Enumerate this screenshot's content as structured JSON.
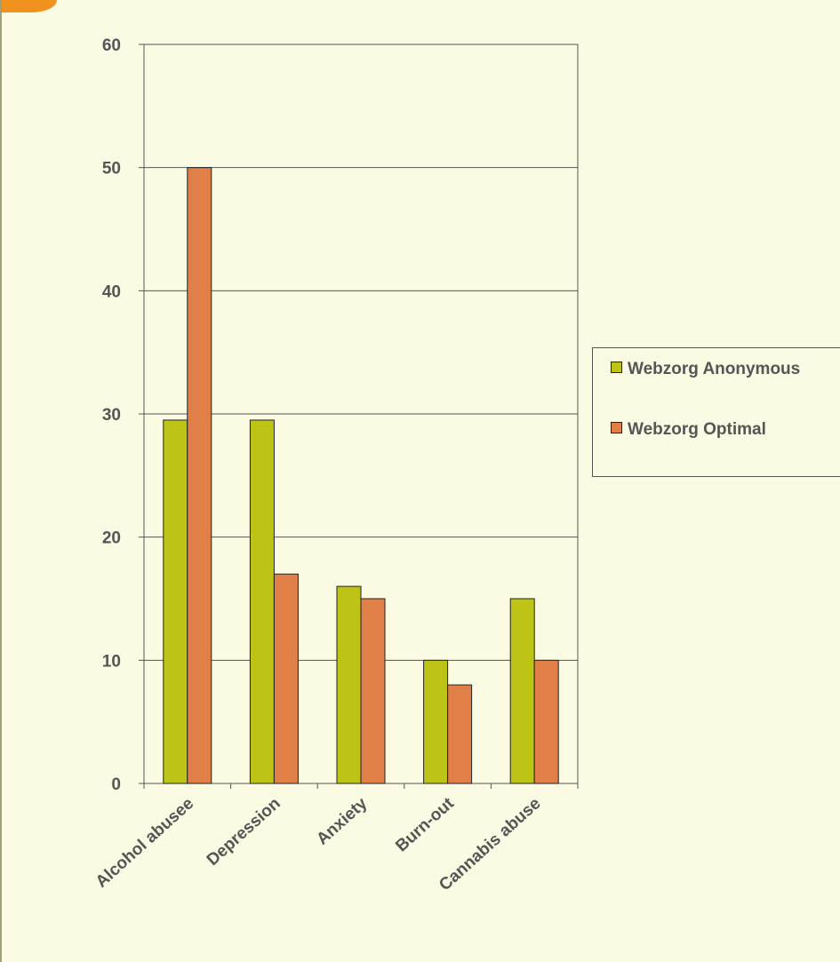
{
  "chart_data": {
    "type": "bar",
    "categories": [
      "Alcohol abusee",
      "Depression",
      "Anxiety",
      "Burn-out",
      "Cannabis abuse"
    ],
    "series": [
      {
        "name": "Webzorg Anonymous",
        "values": [
          29.5,
          29.5,
          16,
          10,
          15
        ],
        "color": "#bdc416"
      },
      {
        "name": "Webzorg Optimal",
        "values": [
          50,
          17,
          15,
          8,
          10
        ],
        "color": "#e07f47"
      }
    ],
    "ylim": [
      0,
      60
    ],
    "yticks": [
      "0",
      "10",
      "20",
      "30",
      "40",
      "50",
      "60"
    ],
    "grid": true,
    "legend_position": "right",
    "title": "",
    "xlabel": "",
    "ylabel": ""
  },
  "colors": {
    "background": "#fbfbe3",
    "accent": "#f0921e",
    "axis": "#555555",
    "gridline": "#555555"
  }
}
